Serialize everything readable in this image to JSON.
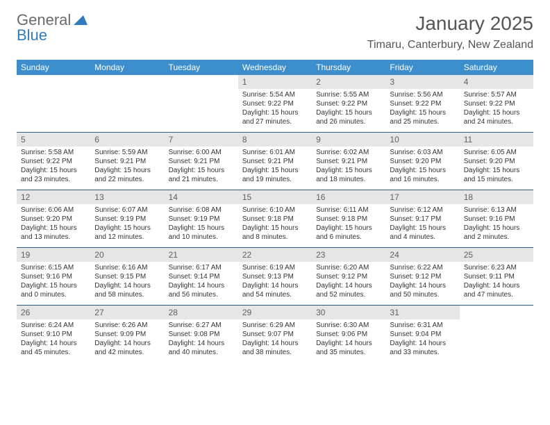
{
  "logo": {
    "text_gray": "General",
    "text_blue": "Blue",
    "shape_color": "#2f7bbf"
  },
  "title": "January 2025",
  "location": "Timaru, Canterbury, New Zealand",
  "colors": {
    "header_bg": "#3c8ecc",
    "header_text": "#ffffff",
    "daynum_bg": "#e6e6e6",
    "daynum_text": "#606060",
    "rule": "#2f5d86",
    "body_text": "#333333"
  },
  "weekdays": [
    "Sunday",
    "Monday",
    "Tuesday",
    "Wednesday",
    "Thursday",
    "Friday",
    "Saturday"
  ],
  "weeks": [
    [
      null,
      null,
      null,
      {
        "n": "1",
        "sr": "Sunrise: 5:54 AM",
        "ss": "Sunset: 9:22 PM",
        "d1": "Daylight: 15 hours",
        "d2": "and 27 minutes."
      },
      {
        "n": "2",
        "sr": "Sunrise: 5:55 AM",
        "ss": "Sunset: 9:22 PM",
        "d1": "Daylight: 15 hours",
        "d2": "and 26 minutes."
      },
      {
        "n": "3",
        "sr": "Sunrise: 5:56 AM",
        "ss": "Sunset: 9:22 PM",
        "d1": "Daylight: 15 hours",
        "d2": "and 25 minutes."
      },
      {
        "n": "4",
        "sr": "Sunrise: 5:57 AM",
        "ss": "Sunset: 9:22 PM",
        "d1": "Daylight: 15 hours",
        "d2": "and 24 minutes."
      }
    ],
    [
      {
        "n": "5",
        "sr": "Sunrise: 5:58 AM",
        "ss": "Sunset: 9:22 PM",
        "d1": "Daylight: 15 hours",
        "d2": "and 23 minutes."
      },
      {
        "n": "6",
        "sr": "Sunrise: 5:59 AM",
        "ss": "Sunset: 9:21 PM",
        "d1": "Daylight: 15 hours",
        "d2": "and 22 minutes."
      },
      {
        "n": "7",
        "sr": "Sunrise: 6:00 AM",
        "ss": "Sunset: 9:21 PM",
        "d1": "Daylight: 15 hours",
        "d2": "and 21 minutes."
      },
      {
        "n": "8",
        "sr": "Sunrise: 6:01 AM",
        "ss": "Sunset: 9:21 PM",
        "d1": "Daylight: 15 hours",
        "d2": "and 19 minutes."
      },
      {
        "n": "9",
        "sr": "Sunrise: 6:02 AM",
        "ss": "Sunset: 9:21 PM",
        "d1": "Daylight: 15 hours",
        "d2": "and 18 minutes."
      },
      {
        "n": "10",
        "sr": "Sunrise: 6:03 AM",
        "ss": "Sunset: 9:20 PM",
        "d1": "Daylight: 15 hours",
        "d2": "and 16 minutes."
      },
      {
        "n": "11",
        "sr": "Sunrise: 6:05 AM",
        "ss": "Sunset: 9:20 PM",
        "d1": "Daylight: 15 hours",
        "d2": "and 15 minutes."
      }
    ],
    [
      {
        "n": "12",
        "sr": "Sunrise: 6:06 AM",
        "ss": "Sunset: 9:20 PM",
        "d1": "Daylight: 15 hours",
        "d2": "and 13 minutes."
      },
      {
        "n": "13",
        "sr": "Sunrise: 6:07 AM",
        "ss": "Sunset: 9:19 PM",
        "d1": "Daylight: 15 hours",
        "d2": "and 12 minutes."
      },
      {
        "n": "14",
        "sr": "Sunrise: 6:08 AM",
        "ss": "Sunset: 9:19 PM",
        "d1": "Daylight: 15 hours",
        "d2": "and 10 minutes."
      },
      {
        "n": "15",
        "sr": "Sunrise: 6:10 AM",
        "ss": "Sunset: 9:18 PM",
        "d1": "Daylight: 15 hours",
        "d2": "and 8 minutes."
      },
      {
        "n": "16",
        "sr": "Sunrise: 6:11 AM",
        "ss": "Sunset: 9:18 PM",
        "d1": "Daylight: 15 hours",
        "d2": "and 6 minutes."
      },
      {
        "n": "17",
        "sr": "Sunrise: 6:12 AM",
        "ss": "Sunset: 9:17 PM",
        "d1": "Daylight: 15 hours",
        "d2": "and 4 minutes."
      },
      {
        "n": "18",
        "sr": "Sunrise: 6:13 AM",
        "ss": "Sunset: 9:16 PM",
        "d1": "Daylight: 15 hours",
        "d2": "and 2 minutes."
      }
    ],
    [
      {
        "n": "19",
        "sr": "Sunrise: 6:15 AM",
        "ss": "Sunset: 9:16 PM",
        "d1": "Daylight: 15 hours",
        "d2": "and 0 minutes."
      },
      {
        "n": "20",
        "sr": "Sunrise: 6:16 AM",
        "ss": "Sunset: 9:15 PM",
        "d1": "Daylight: 14 hours",
        "d2": "and 58 minutes."
      },
      {
        "n": "21",
        "sr": "Sunrise: 6:17 AM",
        "ss": "Sunset: 9:14 PM",
        "d1": "Daylight: 14 hours",
        "d2": "and 56 minutes."
      },
      {
        "n": "22",
        "sr": "Sunrise: 6:19 AM",
        "ss": "Sunset: 9:13 PM",
        "d1": "Daylight: 14 hours",
        "d2": "and 54 minutes."
      },
      {
        "n": "23",
        "sr": "Sunrise: 6:20 AM",
        "ss": "Sunset: 9:12 PM",
        "d1": "Daylight: 14 hours",
        "d2": "and 52 minutes."
      },
      {
        "n": "24",
        "sr": "Sunrise: 6:22 AM",
        "ss": "Sunset: 9:12 PM",
        "d1": "Daylight: 14 hours",
        "d2": "and 50 minutes."
      },
      {
        "n": "25",
        "sr": "Sunrise: 6:23 AM",
        "ss": "Sunset: 9:11 PM",
        "d1": "Daylight: 14 hours",
        "d2": "and 47 minutes."
      }
    ],
    [
      {
        "n": "26",
        "sr": "Sunrise: 6:24 AM",
        "ss": "Sunset: 9:10 PM",
        "d1": "Daylight: 14 hours",
        "d2": "and 45 minutes."
      },
      {
        "n": "27",
        "sr": "Sunrise: 6:26 AM",
        "ss": "Sunset: 9:09 PM",
        "d1": "Daylight: 14 hours",
        "d2": "and 42 minutes."
      },
      {
        "n": "28",
        "sr": "Sunrise: 6:27 AM",
        "ss": "Sunset: 9:08 PM",
        "d1": "Daylight: 14 hours",
        "d2": "and 40 minutes."
      },
      {
        "n": "29",
        "sr": "Sunrise: 6:29 AM",
        "ss": "Sunset: 9:07 PM",
        "d1": "Daylight: 14 hours",
        "d2": "and 38 minutes."
      },
      {
        "n": "30",
        "sr": "Sunrise: 6:30 AM",
        "ss": "Sunset: 9:06 PM",
        "d1": "Daylight: 14 hours",
        "d2": "and 35 minutes."
      },
      {
        "n": "31",
        "sr": "Sunrise: 6:31 AM",
        "ss": "Sunset: 9:04 PM",
        "d1": "Daylight: 14 hours",
        "d2": "and 33 minutes."
      },
      null
    ]
  ]
}
